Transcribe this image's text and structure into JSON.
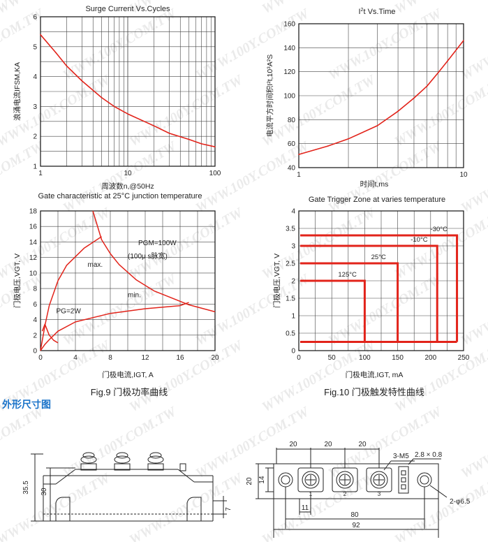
{
  "watermark": "WWW.100Y.COM.TW",
  "colors": {
    "curve": "#e2231a",
    "grid": "#444444",
    "axis": "#111111",
    "section_title": "#1a73c9"
  },
  "chart_data": [
    {
      "id": "surge",
      "type": "line",
      "title": "Surge Current Vs.Cycles",
      "xlabel": "周波数n,@50Hz",
      "ylabel": "浪涌电流IFSM,KA",
      "ylabel_main": "浪涌电流",
      "ylabel_sub": "FSM",
      "ylabel_end": ",KA",
      "xscale": "log",
      "xlim": [
        1,
        100
      ],
      "ylim": [
        1,
        6
      ],
      "xticks": [
        1,
        10,
        100
      ],
      "xtick_labels": [
        "1",
        "10",
        "100"
      ],
      "yticks": [
        1,
        2,
        3,
        4,
        5,
        6
      ],
      "series": [
        {
          "x": [
            1,
            1.5,
            2,
            3,
            5,
            7,
            10,
            20,
            30,
            50,
            70,
            100
          ],
          "values": [
            5.4,
            4.8,
            4.35,
            3.85,
            3.3,
            3.0,
            2.75,
            2.35,
            2.1,
            1.9,
            1.75,
            1.65
          ]
        }
      ]
    },
    {
      "id": "i2t",
      "type": "line",
      "title": "I²t Vs.Time",
      "title_main": "t Vs.Time",
      "title_pre": "I",
      "title_sup": "2",
      "xlabel": "时间t,ms",
      "ylabel": "电流平方时间积I²t,10³A²S",
      "xscale": "log",
      "xlim": [
        1,
        10
      ],
      "ylim": [
        40,
        160
      ],
      "xticks": [
        1,
        10
      ],
      "xtick_labels": [
        "1",
        "10"
      ],
      "yticks": [
        40,
        60,
        80,
        100,
        120,
        140,
        160
      ],
      "series": [
        {
          "x": [
            1,
            1.5,
            2,
            3,
            4,
            5,
            6,
            7,
            8,
            10
          ],
          "values": [
            51,
            58,
            64,
            75,
            87,
            98,
            108,
            119,
            129,
            146
          ]
        }
      ]
    },
    {
      "id": "gate",
      "type": "line",
      "title": "Gate characteristic at 25°C junction temperature",
      "xlabel": "门极电流,IGT, A",
      "ylabel": "门极电压,VGT, V",
      "xlim": [
        0,
        20
      ],
      "ylim": [
        0,
        18
      ],
      "xticks": [
        0,
        4,
        8,
        12,
        16,
        20
      ],
      "yticks": [
        0,
        2,
        4,
        6,
        8,
        10,
        12,
        14,
        16,
        18
      ],
      "annotations": [
        "max.",
        "min.",
        "PGM=100W",
        "(100μ s脉宽)",
        "PG=2W"
      ],
      "series": [
        {
          "name": "max.",
          "x": [
            0,
            0.5,
            1,
            2,
            3,
            5,
            7
          ],
          "values": [
            0,
            3.2,
            5.8,
            9,
            11,
            13.2,
            14.7
          ]
        },
        {
          "name": "min.",
          "x": [
            0,
            0.5,
            1,
            2,
            4,
            8,
            12,
            16,
            17
          ],
          "values": [
            0,
            0.8,
            1.4,
            2.5,
            3.7,
            4.8,
            5.4,
            5.8,
            6.2
          ]
        },
        {
          "name": "PGM=100W",
          "x": [
            6,
            7,
            8,
            9,
            11,
            13,
            17,
            20
          ],
          "values": [
            18,
            14.3,
            12.5,
            11.1,
            9.1,
            7.7,
            5.9,
            5.0
          ]
        },
        {
          "name": "PG=2W",
          "x": [
            0.2,
            0.5,
            1,
            1.5,
            2
          ],
          "values": [
            2.5,
            3.4,
            2.0,
            1.33,
            1.0
          ]
        }
      ]
    },
    {
      "id": "zone",
      "type": "line",
      "title": "Gate Trigger Zone at varies temperature",
      "xlabel": "门极电流,IGT, mA",
      "ylabel": "门极电压,VGT, V",
      "xlim": [
        0,
        250
      ],
      "ylim": [
        0,
        4
      ],
      "xticks": [
        0,
        50,
        100,
        150,
        200,
        250
      ],
      "yticks": [
        0,
        0.5,
        1,
        1.5,
        2,
        2.5,
        3,
        3.5,
        4
      ],
      "ytick_labels": [
        "0",
        "0.5",
        "1",
        "1.5",
        "2",
        "2.5",
        "3",
        "3.5",
        "4"
      ],
      "floor_v": 0.25,
      "series": [
        {
          "name": "125°C",
          "current": 100,
          "voltage": 2.0
        },
        {
          "name": "25°C",
          "current": 150,
          "voltage": 2.5
        },
        {
          "name": "-10°C",
          "current": 210,
          "voltage": 3.0
        },
        {
          "name": "-30°C",
          "current": 240,
          "voltage": 3.3
        }
      ]
    }
  ],
  "captions": {
    "fig9": "Fig.9 门极功率曲线",
    "fig10": "Fig.10 门极触发特性曲线"
  },
  "section_title": "外形尺寸图",
  "dims": {
    "side_total": "35.5",
    "side_body": "30",
    "side_base": "7",
    "top_pitch": "20",
    "top_pitch_2": "20",
    "top_pitch_3": "20",
    "top_screw": "3-M5",
    "top_tab": "2.8 × 0.8",
    "top_width": "20",
    "top_inner": "14",
    "top_offset": "11",
    "top_holes": "80",
    "top_length": "92",
    "top_mount": "2-φ6.5",
    "pin_labels": [
      "1",
      "2",
      "3"
    ]
  }
}
